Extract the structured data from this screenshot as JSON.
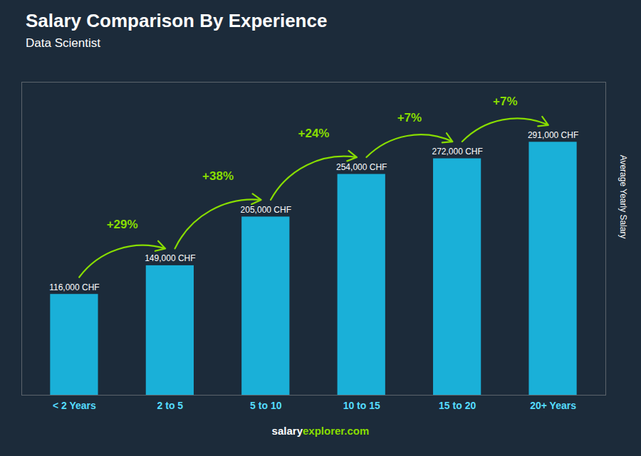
{
  "chart_data": {
    "type": "bar",
    "title": "Salary Comparison By Experience",
    "subtitle": "Data Scientist",
    "ylabel": "Average Yearly Salary",
    "categories": [
      "< 2 Years",
      "2 to 5",
      "5 to 10",
      "10 to 15",
      "15 to 20",
      "20+ Years"
    ],
    "values": [
      116000,
      149000,
      205000,
      254000,
      272000,
      291000
    ],
    "value_labels": [
      "116,000 CHF",
      "149,000 CHF",
      "205,000 CHF",
      "254,000 CHF",
      "272,000 CHF",
      "291,000 CHF"
    ],
    "data_labels": true,
    "color": "#1ab0d8",
    "ylim": [
      0,
      360000
    ],
    "tick_labels": "x",
    "grid": false,
    "annotations": [
      {
        "text": "+29%",
        "from": "< 2 Years",
        "to": "2 to 5",
        "color": "#88dd00"
      },
      {
        "text": "+38%",
        "from": "2 to 5",
        "to": "5 to 10",
        "color": "#88dd00"
      },
      {
        "text": "+24%",
        "from": "5 to 10",
        "to": "10 to 15",
        "color": "#88dd00"
      },
      {
        "text": "+7%",
        "from": "10 to 15",
        "to": "15 to 20",
        "color": "#88dd00"
      },
      {
        "text": "+7%",
        "from": "15 to 20",
        "to": "20+ Years",
        "color": "#88dd00"
      }
    ],
    "footer": [
      {
        "text": "salary",
        "color": "#ffffff"
      },
      {
        "text": "explorer.com",
        "color": "#88dd00"
      }
    ]
  }
}
